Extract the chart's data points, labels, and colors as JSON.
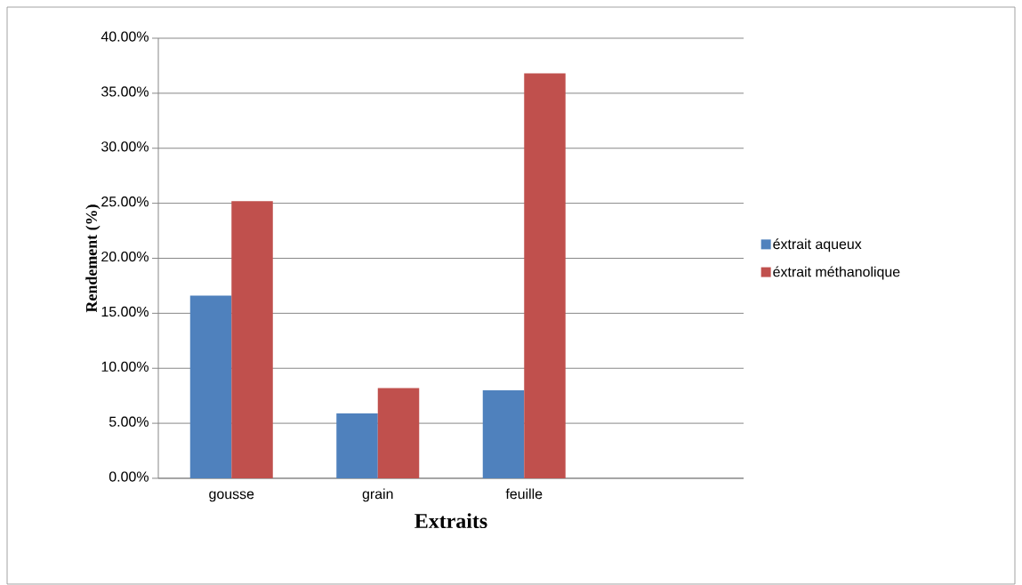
{
  "chart_data": {
    "type": "bar",
    "xlabel": "Extraits",
    "ylabel": "Rendement (%)",
    "categories": [
      "gousse",
      "grain",
      "feuille",
      null
    ],
    "series": [
      {
        "name": "éxtrait aqueux",
        "color": "#4f81bd",
        "values": [
          16.6,
          5.9,
          8.0,
          null
        ]
      },
      {
        "name": "éxtrait méthanolique",
        "color": "#c0504d",
        "values": [
          25.2,
          8.2,
          36.8,
          null
        ]
      }
    ],
    "ylim": [
      0,
      40
    ],
    "yticks": [
      {
        "value": 0,
        "label": "0.00%"
      },
      {
        "value": 5,
        "label": "5.00%"
      },
      {
        "value": 10,
        "label": "10.00%"
      },
      {
        "value": 15,
        "label": "15.00%"
      },
      {
        "value": 20,
        "label": "20.00%"
      },
      {
        "value": 25,
        "label": "25.00%"
      },
      {
        "value": 30,
        "label": "30.00%"
      },
      {
        "value": 35,
        "label": "35.00%"
      },
      {
        "value": 40,
        "label": "40.00%"
      }
    ],
    "grid": "y",
    "legend": "right"
  }
}
